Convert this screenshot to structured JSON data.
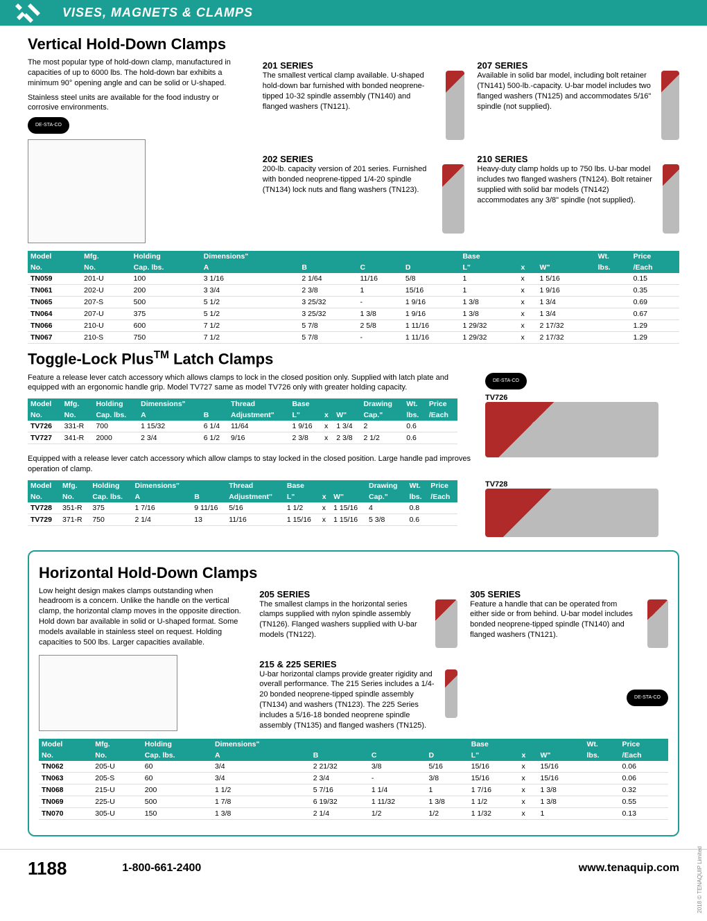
{
  "header": {
    "category": "VISES, MAGNETS & CLAMPS"
  },
  "brand_badge": "DE-STA-CO",
  "section1": {
    "title": "Vertical Hold-Down Clamps",
    "intro": "The most popular type of hold-down clamp, manufactured in capacities of up to 6000 lbs. The hold-down bar exhibits a minimum 90° opening angle and can be solid or U-shaped.",
    "intro2": "Stainless steel units are available for the food industry or corrosive environments.",
    "s201": {
      "title": "201 SERIES",
      "text": "The smallest vertical clamp available. U-shaped hold-down bar furnished with bonded neoprene-tipped 10-32 spindle assembly (TN140) and flanged washers (TN121)."
    },
    "s207": {
      "title": "207 SERIES",
      "text": "Available in solid bar model, including bolt retainer (TN141) 500-lb.-capacity. U-bar model includes two flanged washers (TN125) and accommodates 5/16\" spindle (not supplied)."
    },
    "s202": {
      "title": "202 SERIES",
      "text": "200-lb. capacity version of 201 series. Furnished with bonded neoprene-tipped 1/4-20 spindle (TN134) lock nuts and flang washers (TN123)."
    },
    "s210": {
      "title": "210 SERIES",
      "text": "Heavy-duty clamp holds up to 750 lbs. U-bar model includes two flanged washers (TN124). Bolt retainer supplied with solid bar models (TN142) accommodates any 3/8\" spindle (not supplied)."
    },
    "table": {
      "headers1": [
        "Model",
        "Mfg.",
        "Holding",
        "Dimensions\"",
        "",
        "",
        "",
        "Base",
        "",
        "",
        "Wt.",
        "Price"
      ],
      "headers2": [
        "No.",
        "No.",
        "Cap. lbs.",
        "A",
        "B",
        "C",
        "D",
        "L\"",
        "x",
        "W\"",
        "lbs.",
        "/Each"
      ],
      "rows": [
        [
          "TN059",
          "201-U",
          "100",
          "3 1/16",
          "2 1/64",
          "11/16",
          "5/8",
          "1",
          "x",
          "1 5/16",
          "",
          "0.15"
        ],
        [
          "TN061",
          "202-U",
          "200",
          "3 3/4",
          "2 3/8",
          "1",
          "15/16",
          "1",
          "x",
          "1 9/16",
          "",
          "0.35"
        ],
        [
          "TN065",
          "207-S",
          "500",
          "5 1/2",
          "3 25/32",
          "-",
          "1 9/16",
          "1 3/8",
          "x",
          "1 3/4",
          "",
          "0.69"
        ],
        [
          "TN064",
          "207-U",
          "375",
          "5 1/2",
          "3 25/32",
          "1 3/8",
          "1 9/16",
          "1 3/8",
          "x",
          "1 3/4",
          "",
          "0.67"
        ],
        [
          "TN066",
          "210-U",
          "600",
          "7 1/2",
          "5 7/8",
          "2 5/8",
          "1 11/16",
          "1 29/32",
          "x",
          "2 17/32",
          "",
          "1.29"
        ],
        [
          "TN067",
          "210-S",
          "750",
          "7 1/2",
          "5 7/8",
          "-",
          "1 11/16",
          "1 29/32",
          "x",
          "2 17/32",
          "",
          "1.29"
        ]
      ]
    }
  },
  "section2": {
    "title": "Toggle-Lock Plus™ Latch Clamps",
    "intro": "Feature a release lever catch accessory which allows clamps to lock in the closed position only. Supplied with latch plate and equipped with an ergonomic handle grip. Model TV727 same as model TV726 only with greater holding capacity.",
    "label1": "TV726",
    "table1": {
      "headers1": [
        "Model",
        "Mfg.",
        "Holding",
        "Dimensions\"",
        "",
        "Thread",
        "Base",
        "",
        "",
        "Drawing",
        "Wt.",
        "Price"
      ],
      "headers2": [
        "No.",
        "No.",
        "Cap. lbs.",
        "A",
        "B",
        "Adjustment\"",
        "L\"",
        "x",
        "W\"",
        "Cap.\"",
        "lbs.",
        "/Each"
      ],
      "rows": [
        [
          "TV726",
          "331-R",
          "700",
          "1 15/32",
          "6 1/4",
          "11/64",
          "1 9/16",
          "x",
          "1 3/4",
          "2",
          "0.6",
          ""
        ],
        [
          "TV727",
          "341-R",
          "2000",
          "2 3/4",
          "6 1/2",
          "9/16",
          "2 3/8",
          "x",
          "2 3/8",
          "2 1/2",
          "0.6",
          ""
        ]
      ]
    },
    "intro2": "Equipped with a release lever catch accessory which allow clamps to stay locked in the closed position. Large handle pad improves operation of clamp.",
    "label2": "TV728",
    "table2": {
      "headers1": [
        "Model",
        "Mfg.",
        "Holding",
        "Dimensions\"",
        "",
        "Thread",
        "Base",
        "",
        "",
        "Drawing",
        "Wt.",
        "Price"
      ],
      "headers2": [
        "No.",
        "No.",
        "Cap. lbs.",
        "A",
        "B",
        "Adjustment\"",
        "L\"",
        "x",
        "W\"",
        "Cap.\"",
        "lbs.",
        "/Each"
      ],
      "rows": [
        [
          "TV728",
          "351-R",
          "375",
          "1 7/16",
          "9 11/16",
          "5/16",
          "1 1/2",
          "x",
          "1 15/16",
          "4",
          "0.8",
          ""
        ],
        [
          "TV729",
          "371-R",
          "750",
          "2 1/4",
          "13",
          "11/16",
          "1 15/16",
          "x",
          "1 15/16",
          "5 3/8",
          "0.6",
          ""
        ]
      ]
    }
  },
  "section3": {
    "title": "Horizontal Hold-Down Clamps",
    "intro": "Low height design makes clamps outstanding when headroom is a concern. Unlike the handle on the vertical clamp, the horizontal clamp moves in the opposite direction. Hold down bar available in solid or U-shaped format. Some models available in stainless steel on request. Holding capacities to 500 lbs. Larger capacities available.",
    "s205": {
      "title": "205 SERIES",
      "text": "The smallest clamps in the horizontal series clamps supplied with nylon spindle assembly (TN126). Flanged washers supplied with U-bar models (TN122)."
    },
    "s305": {
      "title": "305 SERIES",
      "text": "Feature a handle that can be operated from either side or from behind. U-bar model includes bonded neoprene-tipped spindle (TN140) and flanged washers (TN121)."
    },
    "s215": {
      "title": "215 & 225 SERIES",
      "text": "U-bar horizontal clamps provide greater rigidity and overall performance. The 215 Series includes a 1/4-20 bonded neoprene-tipped spindle assembly (TN134) and washers (TN123). The 225 Series includes a 5/16-18 bonded neoprene spindle assembly (TN135) and flanged washers (TN125)."
    },
    "table": {
      "headers1": [
        "Model",
        "Mfg.",
        "Holding",
        "Dimensions\"",
        "",
        "",
        "",
        "Base",
        "",
        "",
        "Wt.",
        "Price"
      ],
      "headers2": [
        "No.",
        "No.",
        "Cap. lbs.",
        "A",
        "B",
        "C",
        "D",
        "L\"",
        "x",
        "W\"",
        "lbs.",
        "/Each"
      ],
      "rows": [
        [
          "TN062",
          "205-U",
          "60",
          "3/4",
          "2 21/32",
          "3/8",
          "5/16",
          "15/16",
          "x",
          "15/16",
          "",
          "0.06"
        ],
        [
          "TN063",
          "205-S",
          "60",
          "3/4",
          "2 3/4",
          "-",
          "3/8",
          "15/16",
          "x",
          "15/16",
          "",
          "0.06"
        ],
        [
          "TN068",
          "215-U",
          "200",
          "1 1/2",
          "5 7/16",
          "1 1/4",
          "1",
          "1 7/16",
          "x",
          "1 3/8",
          "",
          "0.32"
        ],
        [
          "TN069",
          "225-U",
          "500",
          "1 7/8",
          "6 19/32",
          "1 11/32",
          "1 3/8",
          "1 1/2",
          "x",
          "1 3/8",
          "",
          "0.55"
        ],
        [
          "TN070",
          "305-U",
          "150",
          "1 3/8",
          "2 1/4",
          "1/2",
          "1/2",
          "1 1/32",
          "x",
          "1",
          "",
          "0.13"
        ]
      ]
    }
  },
  "footer": {
    "page": "1188",
    "phone": "1-800-661-2400",
    "url": "www.tenaquip.com"
  },
  "copyright": "2018 © TENAQUIP Limited"
}
